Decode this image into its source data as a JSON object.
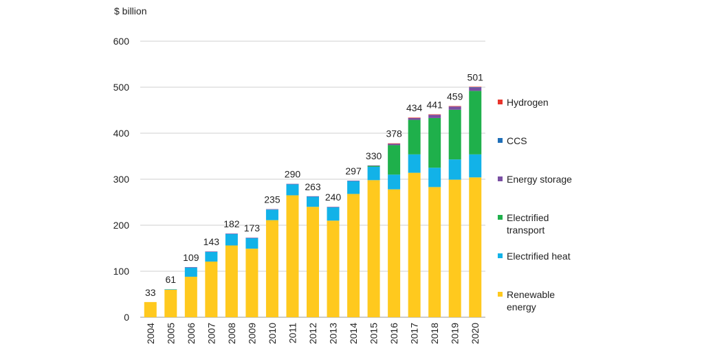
{
  "chart_data": {
    "type": "bar",
    "stacked": true,
    "title": "",
    "xlabel": "",
    "ylabel": "$ billion",
    "ylim": [
      0,
      600
    ],
    "yticks": [
      0,
      100,
      200,
      300,
      400,
      500,
      600
    ],
    "grid": true,
    "legend_position": "right",
    "categories": [
      "2004",
      "2005",
      "2006",
      "2007",
      "2008",
      "2009",
      "2010",
      "2011",
      "2012",
      "2013",
      "2014",
      "2015",
      "2016",
      "2017",
      "2018",
      "2019",
      "2020"
    ],
    "totals": [
      33,
      61,
      109,
      143,
      182,
      173,
      235,
      290,
      263,
      240,
      297,
      330,
      378,
      434,
      441,
      459,
      501
    ],
    "series": [
      {
        "name": "Renewable energy",
        "color": "#FFC91E",
        "values": [
          33,
          60,
          88,
          121,
          156,
          149,
          211,
          265,
          240,
          210,
          268,
          298,
          278,
          314,
          283,
          299,
          304
        ]
      },
      {
        "name": "Electrified heat",
        "color": "#12B2E8",
        "values": [
          0,
          1,
          20,
          21,
          25,
          23,
          23,
          24,
          22,
          29,
          28,
          29,
          32,
          40,
          42,
          44,
          50
        ]
      },
      {
        "name": "Electrified transport",
        "color": "#1FB04B",
        "values": [
          0,
          0,
          0,
          0,
          0,
          0,
          0,
          0,
          0,
          0,
          0,
          2,
          64,
          75,
          108,
          108,
          138
        ]
      },
      {
        "name": "Energy storage",
        "color": "#7A4FA3",
        "values": [
          0,
          0,
          1,
          1,
          1,
          1,
          1,
          1,
          1,
          1,
          1,
          1,
          3,
          4,
          7,
          7,
          7
        ]
      },
      {
        "name": "CCS",
        "color": "#1F6FB8",
        "values": [
          0,
          0,
          0,
          0,
          0,
          0,
          0,
          0,
          0,
          0,
          0,
          0,
          0,
          0,
          0,
          0,
          1
        ]
      },
      {
        "name": "Hydrogen",
        "color": "#E8342C",
        "values": [
          0,
          0,
          0,
          0,
          0,
          0,
          0,
          0,
          0,
          0,
          0,
          0,
          1,
          1,
          1,
          1,
          1
        ]
      }
    ],
    "legend": [
      {
        "label": "Hydrogen",
        "color": "#E8342C"
      },
      {
        "label": "CCS",
        "color": "#1F6FB8"
      },
      {
        "label": "Energy storage",
        "color": "#7A4FA3"
      },
      {
        "label": "Electrified transport",
        "color": "#1FB04B"
      },
      {
        "label": "Electrified heat",
        "color": "#12B2E8"
      },
      {
        "label": "Renewable energy",
        "color": "#FFC91E"
      }
    ]
  }
}
